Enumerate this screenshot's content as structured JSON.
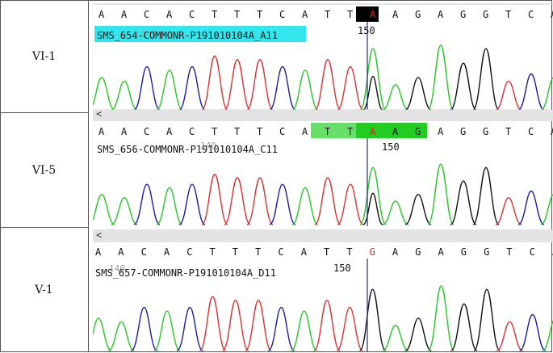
{
  "rows": [
    {
      "label": "VI-1",
      "sequence": [
        "A",
        "A",
        "C",
        "A",
        "C",
        "T",
        "T",
        "T",
        "C",
        "A",
        "T",
        "T",
        "A",
        "A",
        "G",
        "A",
        "G",
        "G",
        "T",
        "C",
        "A"
      ],
      "sample_name": "SMS_654-COMMONR-P191010104A_A11",
      "faded_number": "140",
      "position_label": "150",
      "scroll_glyph": "<"
    },
    {
      "label": "VI-5",
      "sequence": [
        "A",
        "A",
        "C",
        "A",
        "C",
        "T",
        "T",
        "T",
        "C",
        "A",
        "T",
        "T",
        "A",
        "A",
        "G",
        "A",
        "G",
        "G",
        "T",
        "C",
        "A"
      ],
      "sample_name": "SMS_656-COMMONR-P191010104A_C11",
      "faded_number": "140",
      "position_label": "150",
      "scroll_glyph": "<"
    },
    {
      "label": "V-1",
      "sequence": [
        "A",
        "A",
        "C",
        "A",
        "C",
        "T",
        "T",
        "T",
        "C",
        "A",
        "T",
        "T",
        "G",
        "A",
        "G",
        "A",
        "G",
        "G",
        "T",
        "C",
        "A"
      ],
      "sample_name": "SMS_657-COMMONR-P191010104A_D11",
      "faded_number": "140",
      "position_label": "150"
    }
  ],
  "colors": {
    "A": "#22c922",
    "C": "#1a1aa8",
    "G": "#111111",
    "T": "#e03030",
    "highlight_cyan": "#33e6ee",
    "highlight_green_light": "#66e066",
    "highlight_green": "#22cc22",
    "cursor": "#2a2a8a"
  }
}
